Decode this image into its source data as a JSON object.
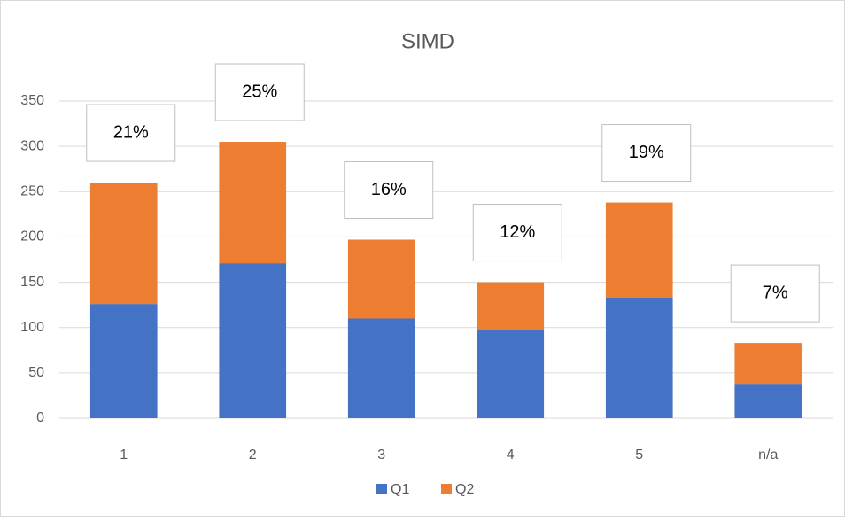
{
  "chart_data": {
    "type": "stacked_bar",
    "title": "SIMD",
    "categories": [
      "1",
      "2",
      "3",
      "4",
      "5",
      "n/a"
    ],
    "series": [
      {
        "name": "Q1",
        "color": "#4472c4",
        "values": [
          126,
          171,
          110,
          97,
          133,
          38
        ]
      },
      {
        "name": "Q2",
        "color": "#ed7d31",
        "values": [
          134,
          134,
          87,
          53,
          105,
          45
        ]
      }
    ],
    "annotations": [
      "21%",
      "25%",
      "16%",
      "12%",
      "19%",
      "7%"
    ],
    "ylim": [
      0,
      350
    ],
    "yticks": [
      0,
      50,
      100,
      150,
      200,
      250,
      300,
      350
    ],
    "grid": true,
    "legend": "bottom"
  }
}
